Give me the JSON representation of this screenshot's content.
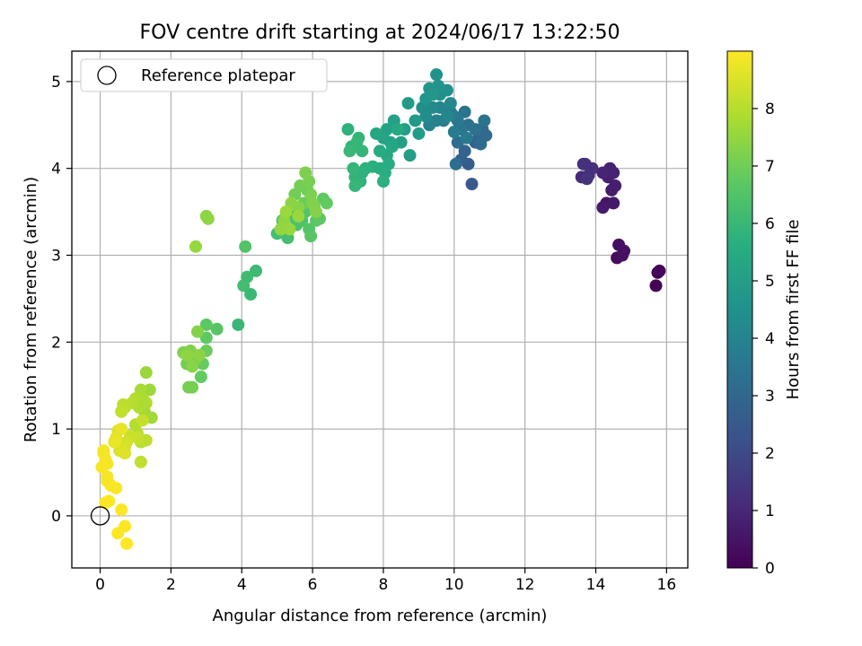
{
  "chart_data": {
    "type": "scatter",
    "title": "FOV centre drift starting at 2024/06/17 13:22:50",
    "xlabel": "Angular distance from reference (arcmin)",
    "ylabel": "Rotation from reference (arcmin)",
    "xlim": [
      -0.8,
      16.6
    ],
    "ylim": [
      -0.6,
      5.35
    ],
    "xticks": [
      0,
      2,
      4,
      6,
      8,
      10,
      12,
      14,
      16
    ],
    "yticks": [
      0,
      1,
      2,
      3,
      4,
      5
    ],
    "grid": true,
    "legend": {
      "placement": "upper-left",
      "entries": [
        {
          "label": "Reference platepar",
          "marker": "open-circle"
        }
      ]
    },
    "reference_point": {
      "x": 0,
      "y": 0
    },
    "colorbar": {
      "label": "Hours from first FF file",
      "range": [
        0,
        9
      ],
      "ticks": [
        0,
        1,
        2,
        3,
        4,
        5,
        6,
        7,
        8
      ],
      "colormap": "viridis"
    },
    "series": [
      {
        "points": [
          [
            15.75,
            2.8,
            0.05
          ],
          [
            15.7,
            2.65,
            0.1
          ],
          [
            15.8,
            2.82,
            0.15
          ],
          [
            14.6,
            2.97,
            0.3
          ],
          [
            14.75,
            3.0,
            0.35
          ],
          [
            14.65,
            3.12,
            0.4
          ],
          [
            14.8,
            3.05,
            0.45
          ],
          [
            14.3,
            3.6,
            0.55
          ],
          [
            14.5,
            3.6,
            0.6
          ],
          [
            14.2,
            3.55,
            0.65
          ],
          [
            14.45,
            3.75,
            0.7
          ],
          [
            14.55,
            3.8,
            0.75
          ],
          [
            14.35,
            3.9,
            0.8
          ],
          [
            14.4,
            4.0,
            0.85
          ],
          [
            14.5,
            3.95,
            0.9
          ],
          [
            14.2,
            3.95,
            0.95
          ],
          [
            13.6,
            3.9,
            1.1
          ],
          [
            13.7,
            4.05,
            1.15
          ],
          [
            13.8,
            3.92,
            1.2
          ],
          [
            13.9,
            4.0,
            1.25
          ],
          [
            13.65,
            4.05,
            1.3
          ],
          [
            13.75,
            3.88,
            1.35
          ],
          [
            10.5,
            3.82,
            2.5
          ],
          [
            10.4,
            4.05,
            2.6
          ],
          [
            10.2,
            4.1,
            2.7
          ],
          [
            10.6,
            4.3,
            2.8
          ],
          [
            10.3,
            4.2,
            2.9
          ],
          [
            10.7,
            4.38,
            3.0
          ],
          [
            10.8,
            4.45,
            3.05
          ],
          [
            10.9,
            4.38,
            3.1
          ],
          [
            10.75,
            4.28,
            3.15
          ],
          [
            10.1,
            4.3,
            3.2
          ],
          [
            10.05,
            4.05,
            3.25
          ],
          [
            10.4,
            4.5,
            3.3
          ],
          [
            10.6,
            4.45,
            3.35
          ],
          [
            10.85,
            4.55,
            3.4
          ],
          [
            10.3,
            4.65,
            3.45
          ],
          [
            10.2,
            4.45,
            3.5
          ],
          [
            10.1,
            4.55,
            3.55
          ],
          [
            10.0,
            4.6,
            3.6
          ],
          [
            10.35,
            4.35,
            3.65
          ],
          [
            9.9,
            4.65,
            3.7
          ],
          [
            10.0,
            4.42,
            3.75
          ],
          [
            9.7,
            4.55,
            3.8
          ],
          [
            9.5,
            4.55,
            3.9
          ],
          [
            9.3,
            4.5,
            4.0
          ],
          [
            9.6,
            4.7,
            4.05
          ],
          [
            9.8,
            4.6,
            4.1
          ],
          [
            9.9,
            4.75,
            4.2
          ],
          [
            9.4,
            4.7,
            4.3
          ],
          [
            9.2,
            4.6,
            4.35
          ],
          [
            9.1,
            4.7,
            4.4
          ],
          [
            9.6,
            4.85,
            4.45
          ],
          [
            9.8,
            4.9,
            4.5
          ],
          [
            9.5,
            5.08,
            4.55
          ],
          [
            9.55,
            4.95,
            4.6
          ],
          [
            9.3,
            4.92,
            4.65
          ],
          [
            9.2,
            4.8,
            4.7
          ],
          [
            9.4,
            4.85,
            4.75
          ],
          [
            8.9,
            4.55,
            4.8
          ],
          [
            8.7,
            4.75,
            4.85
          ],
          [
            9.0,
            4.4,
            4.9
          ],
          [
            8.75,
            4.15,
            4.95
          ],
          [
            8.6,
            4.45,
            5.0
          ],
          [
            8.5,
            4.3,
            5.05
          ],
          [
            8.3,
            4.55,
            5.1
          ],
          [
            8.1,
            4.45,
            5.15
          ],
          [
            8.2,
            4.3,
            5.2
          ],
          [
            8.0,
            4.35,
            5.25
          ],
          [
            7.8,
            4.4,
            5.3
          ],
          [
            8.25,
            4.25,
            5.35
          ],
          [
            8.1,
            4.15,
            5.4
          ],
          [
            8.4,
            4.45,
            5.45
          ],
          [
            7.9,
            4.2,
            5.5
          ],
          [
            8.15,
            4.05,
            5.55
          ],
          [
            8.05,
            3.95,
            5.6
          ],
          [
            7.9,
            4.0,
            5.6
          ],
          [
            7.7,
            4.02,
            5.65
          ],
          [
            7.5,
            4.0,
            5.7
          ],
          [
            7.4,
            3.95,
            5.75
          ],
          [
            7.35,
            3.85,
            5.8
          ],
          [
            7.2,
            3.9,
            5.85
          ],
          [
            7.15,
            4.0,
            5.9
          ],
          [
            7.2,
            3.8,
            5.95
          ],
          [
            8.0,
            3.85,
            5.7
          ],
          [
            7.0,
            4.45,
            5.75
          ],
          [
            7.1,
            4.25,
            5.8
          ],
          [
            7.3,
            4.35,
            5.85
          ],
          [
            7.4,
            4.2,
            5.9
          ],
          [
            7.25,
            4.3,
            5.95
          ],
          [
            7.05,
            4.2,
            6.0
          ],
          [
            5.0,
            3.25,
            6.2
          ],
          [
            5.3,
            3.2,
            6.25
          ],
          [
            5.4,
            3.45,
            6.3
          ],
          [
            5.15,
            3.4,
            6.35
          ],
          [
            5.55,
            3.35,
            6.4
          ],
          [
            5.7,
            3.4,
            6.45
          ],
          [
            5.8,
            3.5,
            6.5
          ],
          [
            5.9,
            3.3,
            6.55
          ],
          [
            5.95,
            3.22,
            6.6
          ],
          [
            6.1,
            3.4,
            6.65
          ],
          [
            6.2,
            3.42,
            6.7
          ],
          [
            6.3,
            3.65,
            6.75
          ],
          [
            6.4,
            3.6,
            6.8
          ],
          [
            6.05,
            3.55,
            6.85
          ],
          [
            5.85,
            3.75,
            6.9
          ],
          [
            5.75,
            3.6,
            6.95
          ],
          [
            5.5,
            3.7,
            7.0
          ],
          [
            5.65,
            3.8,
            7.05
          ],
          [
            5.9,
            3.85,
            7.1
          ],
          [
            5.95,
            3.7,
            7.15
          ],
          [
            5.8,
            3.95,
            7.2
          ],
          [
            6.0,
            3.6,
            7.25
          ],
          [
            6.1,
            3.5,
            7.3
          ],
          [
            5.6,
            3.55,
            7.35
          ],
          [
            5.4,
            3.6,
            7.4
          ],
          [
            5.2,
            3.4,
            7.45
          ],
          [
            5.1,
            3.3,
            7.5
          ],
          [
            5.35,
            3.3,
            7.55
          ],
          [
            5.6,
            3.45,
            7.6
          ],
          [
            5.25,
            3.5,
            7.65
          ]
        ]
      }
    ],
    "point_time_note": "third value per point is hours from first FF file (colour)",
    "late_points": [
      [
        3.9,
        2.2,
        6.0
      ],
      [
        4.25,
        2.55,
        6.05
      ],
      [
        4.4,
        2.82,
        6.1
      ],
      [
        4.15,
        2.75,
        6.15
      ],
      [
        4.05,
        2.65,
        6.2
      ],
      [
        4.1,
        3.1,
        6.5
      ],
      [
        3.3,
        2.15,
        6.6
      ],
      [
        3.0,
        2.2,
        6.7
      ],
      [
        3.0,
        2.05,
        6.75
      ],
      [
        2.85,
        1.6,
        6.8
      ],
      [
        2.9,
        1.75,
        6.85
      ],
      [
        3.0,
        1.9,
        6.9
      ],
      [
        2.6,
        1.85,
        6.95
      ],
      [
        2.45,
        1.75,
        7.0
      ],
      [
        2.5,
        1.48,
        7.05
      ],
      [
        2.6,
        1.48,
        7.1
      ],
      [
        2.7,
        1.8,
        7.15
      ],
      [
        2.35,
        1.88,
        7.2
      ],
      [
        2.55,
        1.9,
        7.25
      ],
      [
        2.75,
        2.12,
        7.3
      ],
      [
        2.6,
        1.72,
        7.35
      ],
      [
        2.8,
        1.85,
        7.4
      ],
      [
        2.45,
        1.85,
        7.45
      ],
      [
        3.0,
        3.45,
        7.4
      ],
      [
        3.05,
        3.42,
        7.45
      ],
      [
        2.7,
        3.1,
        7.55
      ],
      [
        1.3,
        1.65,
        7.6
      ],
      [
        1.4,
        1.45,
        7.65
      ],
      [
        1.45,
        1.13,
        7.7
      ],
      [
        1.25,
        1.2,
        7.75
      ],
      [
        1.15,
        1.45,
        7.8
      ],
      [
        1.2,
        1.35,
        7.85
      ],
      [
        1.1,
        1.25,
        7.9
      ],
      [
        1.0,
        1.35,
        7.95
      ],
      [
        0.9,
        1.3,
        8.0
      ],
      [
        0.7,
        1.25,
        8.05
      ],
      [
        0.65,
        1.28,
        8.1
      ],
      [
        0.6,
        1.2,
        8.15
      ],
      [
        1.3,
        1.3,
        7.85
      ],
      [
        1.0,
        1.05,
        7.95
      ],
      [
        1.05,
        0.95,
        8.0
      ],
      [
        1.15,
        0.85,
        8.05
      ],
      [
        1.3,
        0.87,
        8.1
      ],
      [
        1.15,
        0.62,
        8.15
      ],
      [
        1.2,
        1.1,
        8.2
      ],
      [
        1.05,
        0.9,
        8.25
      ],
      [
        0.85,
        0.92,
        8.3
      ],
      [
        0.75,
        0.85,
        8.35
      ],
      [
        0.7,
        0.8,
        8.4
      ],
      [
        0.6,
        0.82,
        8.45
      ],
      [
        0.55,
        0.75,
        8.5
      ],
      [
        0.7,
        0.72,
        8.55
      ],
      [
        0.5,
        0.98,
        8.6
      ],
      [
        0.45,
        0.9,
        8.65
      ],
      [
        0.6,
        1.0,
        8.7
      ],
      [
        0.4,
        0.85,
        8.75
      ],
      [
        0.1,
        0.72,
        8.8
      ],
      [
        0.15,
        0.65,
        8.85
      ],
      [
        0.2,
        0.6,
        8.9
      ],
      [
        0.05,
        0.56,
        8.9
      ],
      [
        0.2,
        0.4,
        8.95
      ],
      [
        0.3,
        0.35,
        8.95
      ],
      [
        0.45,
        0.32,
        8.95
      ],
      [
        0.15,
        0.15,
        9.0
      ],
      [
        0.25,
        0.17,
        9.0
      ],
      [
        0.6,
        0.07,
        9.0
      ],
      [
        0.7,
        -0.12,
        9.0
      ],
      [
        0.5,
        -0.2,
        9.0
      ],
      [
        0.75,
        -0.32,
        9.0
      ],
      [
        0.1,
        0.75,
        8.85
      ],
      [
        0.2,
        0.45,
        8.9
      ]
    ]
  }
}
